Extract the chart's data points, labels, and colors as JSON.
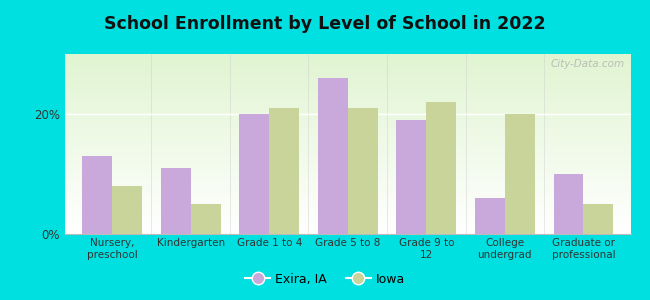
{
  "title": "School Enrollment by Level of School in 2022",
  "categories": [
    "Nursery,\npreschool",
    "Kindergarten",
    "Grade 1 to 4",
    "Grade 5 to 8",
    "Grade 9 to\n12",
    "College\nundergrad",
    "Graduate or\nprofessional"
  ],
  "exira_values": [
    13,
    11,
    20,
    26,
    19,
    6,
    10
  ],
  "iowa_values": [
    8,
    5,
    21,
    21,
    22,
    20,
    5
  ],
  "exira_color": "#c9a8dc",
  "iowa_color": "#c8d49a",
  "background_color": "#00e0e0",
  "yticks": [
    0,
    20
  ],
  "ytick_labels": [
    "0%",
    "20%"
  ],
  "ylim": [
    0,
    30
  ],
  "legend_labels": [
    "Exira, IA",
    "Iowa"
  ],
  "watermark": "City-Data.com",
  "bar_width": 0.38
}
